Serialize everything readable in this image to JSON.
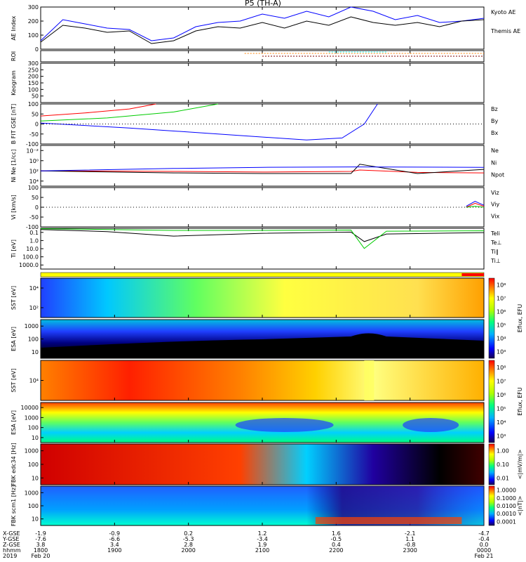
{
  "title": "P5 (TH-A)",
  "chart_data": [
    {
      "type": "line",
      "id": "ae",
      "ylabel": "AE Index",
      "ylim": [
        0,
        300
      ],
      "yticks": [
        0,
        100,
        200,
        300
      ],
      "series": [
        {
          "name": "Kyoto AE",
          "color": "#0000ff",
          "x": [
            0,
            0.05,
            0.1,
            0.15,
            0.2,
            0.25,
            0.3,
            0.35,
            0.4,
            0.45,
            0.5,
            0.55,
            0.6,
            0.65,
            0.7,
            0.75,
            0.8,
            0.85,
            0.9,
            0.95,
            1
          ],
          "y": [
            60,
            210,
            180,
            150,
            140,
            60,
            80,
            160,
            190,
            200,
            250,
            220,
            270,
            230,
            300,
            270,
            210,
            240,
            190,
            200,
            220
          ]
        },
        {
          "name": "Themis AE",
          "color": "#000000",
          "x": [
            0,
            0.05,
            0.1,
            0.15,
            0.2,
            0.25,
            0.3,
            0.35,
            0.4,
            0.45,
            0.5,
            0.55,
            0.6,
            0.65,
            0.7,
            0.75,
            0.8,
            0.85,
            0.9,
            0.95,
            1
          ],
          "y": [
            50,
            170,
            150,
            120,
            130,
            40,
            60,
            130,
            160,
            150,
            190,
            150,
            200,
            170,
            230,
            190,
            170,
            190,
            160,
            200,
            210
          ]
        }
      ]
    },
    {
      "type": "line",
      "id": "roi",
      "ylabel": "ROI"
    },
    {
      "type": "line",
      "id": "keogram",
      "ylabel": "Keogram",
      "ylim": [
        0,
        300
      ],
      "yticks": [
        50,
        100,
        150,
        200,
        250,
        300
      ]
    },
    {
      "type": "line",
      "id": "bfield",
      "ylabel": "B FIT GSE [nT]",
      "ylim": [
        -100,
        100
      ],
      "yticks": [
        -100,
        -50,
        0,
        50,
        100
      ],
      "series": [
        {
          "name": "Bz",
          "color": "#ff0000",
          "x": [
            0,
            0.1,
            0.2,
            0.26
          ],
          "y": [
            40,
            55,
            75,
            100
          ]
        },
        {
          "name": "By",
          "color": "#00cc00",
          "x": [
            0,
            0.15,
            0.3,
            0.4
          ],
          "y": [
            15,
            30,
            60,
            100
          ]
        },
        {
          "name": "Bx",
          "color": "#0000ff",
          "x": [
            0,
            0.2,
            0.4,
            0.6,
            0.68,
            0.73,
            0.76
          ],
          "y": [
            5,
            -20,
            -50,
            -80,
            -70,
            0,
            100
          ]
        }
      ]
    },
    {
      "type": "line",
      "id": "density",
      "ylabel": "Ni Ne [1/cc]",
      "ylim": [
        0.001,
        100000
      ],
      "yticklabels": [
        "10⁻²",
        "10⁰",
        "10²",
        "10⁴"
      ],
      "series": [
        {
          "name": "Ne",
          "color": "#ff0000",
          "x": [
            0,
            0.3,
            0.5,
            0.7,
            0.72,
            0.85,
            1
          ],
          "y": [
            1,
            0.8,
            0.6,
            0.8,
            1.5,
            0.5,
            0.4
          ]
        },
        {
          "name": "Ni",
          "color": "#000000",
          "x": [
            0,
            0.3,
            0.5,
            0.7,
            0.72,
            0.85,
            1
          ],
          "y": [
            1,
            0.4,
            0.3,
            0.3,
            20,
            0.3,
            2
          ]
        },
        {
          "name": "Npot",
          "color": "#0000ff",
          "x": [
            0,
            0.3,
            0.5,
            0.72,
            1
          ],
          "y": [
            1,
            3,
            5,
            6,
            5
          ]
        }
      ]
    },
    {
      "type": "line",
      "id": "velocity",
      "ylabel": "Vi [km/s]",
      "ylim": [
        -100,
        100
      ],
      "yticks": [
        -100,
        -50,
        0,
        50,
        100
      ],
      "series": [
        {
          "name": "Viz",
          "color": "#ff0000",
          "x": [
            0.96,
            0.98,
            1
          ],
          "y": [
            0,
            20,
            5
          ]
        },
        {
          "name": "Viy",
          "color": "#00cc00",
          "x": [
            0.96,
            0.98,
            1
          ],
          "y": [
            0,
            5,
            0
          ]
        },
        {
          "name": "Vix",
          "color": "#0000ff",
          "x": [
            0.96,
            0.98,
            1
          ],
          "y": [
            5,
            30,
            10
          ]
        }
      ]
    },
    {
      "type": "line",
      "id": "temperature",
      "ylabel": "Ti [eV]",
      "ylim": [
        0.1,
        2000
      ],
      "yticklabels": [
        "0.1",
        "1.0",
        "10.0",
        "100.0",
        "1000.0"
      ],
      "series": [
        {
          "name": "Teli",
          "color": "#000000",
          "x": [
            0,
            0.15,
            0.3,
            0.5,
            0.7,
            0.73,
            0.78,
            1
          ],
          "y": [
            1500,
            900,
            300,
            600,
            800,
            80,
            500,
            700
          ]
        },
        {
          "name": "Te⊥",
          "color": "#ff0000",
          "x": [],
          "y": []
        },
        {
          "name": "Ti∥",
          "color": "#00cc00",
          "x": [
            0,
            0.15,
            0.3,
            0.5,
            0.7,
            0.73,
            0.78,
            1
          ],
          "y": [
            1800,
            1500,
            1200,
            1200,
            1300,
            15,
            1000,
            1100
          ]
        },
        {
          "name": "Ti⊥",
          "color": "#0000ff",
          "x": [],
          "y": []
        }
      ]
    },
    {
      "type": "heatmap",
      "id": "sst-e",
      "ylabel": "SST [eV]",
      "yticklabels": [
        "10⁴",
        "10²"
      ]
    },
    {
      "type": "heatmap",
      "id": "esa-e",
      "ylabel": "ESA [eV]",
      "yticklabels": [
        "1000",
        "100",
        "10"
      ]
    },
    {
      "type": "heatmap",
      "id": "sst-i",
      "ylabel": "SST [eV]",
      "yticklabels": [
        "10⁴"
      ]
    },
    {
      "type": "heatmap",
      "id": "esa-i",
      "ylabel": "ESA [eV]",
      "yticklabels": [
        "10000",
        "1000",
        "100",
        "10"
      ]
    },
    {
      "type": "heatmap",
      "id": "fbk-e",
      "ylabel": "FBK edc34 [Hz]",
      "yticklabels": [
        "1000",
        "100",
        "10"
      ]
    },
    {
      "type": "heatmap",
      "id": "fbk-b",
      "ylabel": "FBK scm1 [Hz]",
      "yticklabels": [
        "1000",
        "100",
        "10"
      ]
    }
  ],
  "colorbars": {
    "eflux": {
      "label": "Eflux, EFU",
      "ticks": [
        "10⁸",
        "10⁷",
        "10⁶",
        "10⁵",
        "10⁴",
        "10³"
      ]
    },
    "eflux2": {
      "label": "Eflux, EFU",
      "ticks": [
        "10⁸",
        "10⁷",
        "10⁶",
        "10⁵",
        "10⁴",
        "10³"
      ]
    },
    "fbk_e": {
      "label": "<|mV/m|>",
      "ticks": [
        "1.00",
        "0.10",
        "0.01"
      ]
    },
    "fbk_b": {
      "label": "<|nT|>",
      "ticks": [
        "1.0000",
        "0.1000",
        "0.0100",
        "0.0010",
        "0.0001"
      ]
    }
  },
  "time_axis": {
    "row_labels": [
      "X-GSE",
      "Y-GSE",
      "Z-GSE",
      "hhmm",
      "2019"
    ],
    "ticks": [
      {
        "values": [
          "-1.9",
          "-7.6",
          "3.8",
          "1800",
          "Feb 20"
        ]
      },
      {
        "values": [
          "-0.9",
          "-6.6",
          "3.4",
          "1900",
          ""
        ]
      },
      {
        "values": [
          "0.2",
          "-5.3",
          "2.8",
          "2000",
          ""
        ]
      },
      {
        "values": [
          "1.2",
          "-3.4",
          "1.9",
          "2100",
          ""
        ]
      },
      {
        "values": [
          "1.6",
          "-0.5",
          "0.4",
          "2200",
          ""
        ]
      },
      {
        "values": [
          "-2.1",
          "1.1",
          "-0.8",
          "2300",
          ""
        ]
      },
      {
        "values": [
          "-4.7",
          "-0.4",
          "0.0",
          "0000",
          "Feb 21"
        ]
      }
    ]
  }
}
